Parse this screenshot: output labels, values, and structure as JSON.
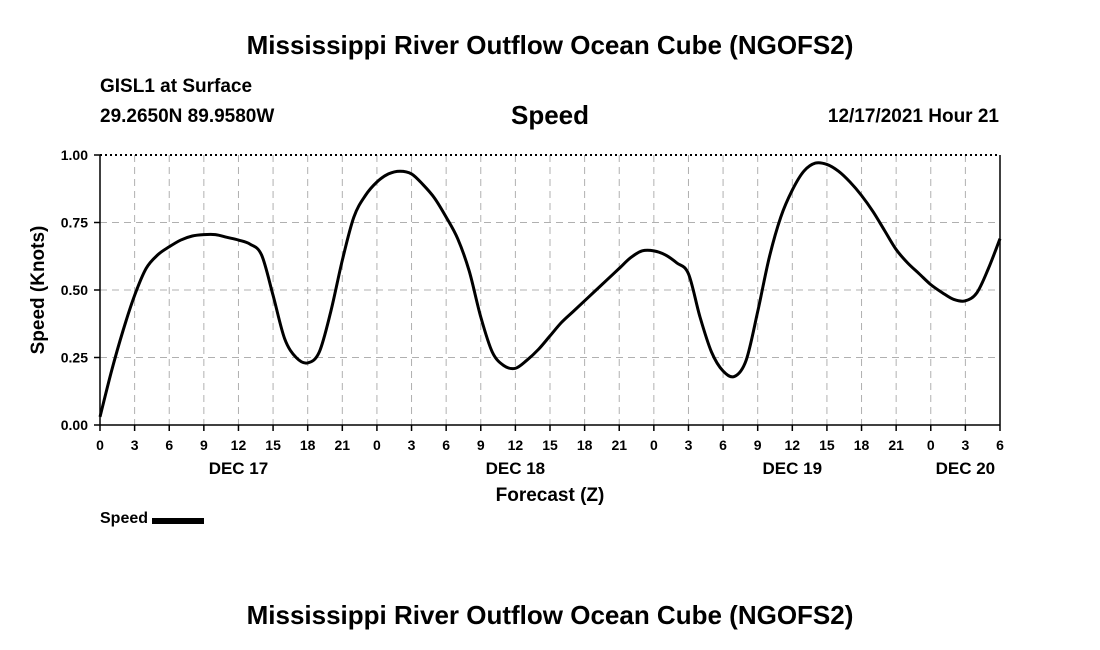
{
  "header": {
    "title": "Mississippi River Outflow Ocean Cube (NGOFS2)",
    "station": "GISL1 at Surface",
    "coords": "29.2650N  89.9580W",
    "subtitle": "Speed",
    "datetime": "12/17/2021 Hour 21"
  },
  "footer": {
    "title": "Mississippi River Outflow Ocean Cube (NGOFS2)"
  },
  "legend": {
    "label": "Speed"
  },
  "chart_data": {
    "type": "line",
    "title": "Speed",
    "xlabel": "Forecast (Z)",
    "ylabel": "Speed (Knots)",
    "xlim": [
      0,
      78
    ],
    "ylim": [
      0,
      1
    ],
    "grid": true,
    "y_ticks": [
      {
        "value": 0,
        "label": "0.00"
      },
      {
        "value": 0.25,
        "label": "0.25"
      },
      {
        "value": 0.5,
        "label": "0.50"
      },
      {
        "value": 0.75,
        "label": "0.75"
      },
      {
        "value": 1,
        "label": "1.00"
      }
    ],
    "x_ticks": [
      {
        "value": 0,
        "label": "0"
      },
      {
        "value": 3,
        "label": "3"
      },
      {
        "value": 6,
        "label": "6"
      },
      {
        "value": 9,
        "label": "9"
      },
      {
        "value": 12,
        "label": "12"
      },
      {
        "value": 15,
        "label": "15"
      },
      {
        "value": 18,
        "label": "18"
      },
      {
        "value": 21,
        "label": "21"
      },
      {
        "value": 24,
        "label": "0"
      },
      {
        "value": 27,
        "label": "3"
      },
      {
        "value": 30,
        "label": "6"
      },
      {
        "value": 33,
        "label": "9"
      },
      {
        "value": 36,
        "label": "12"
      },
      {
        "value": 39,
        "label": "15"
      },
      {
        "value": 42,
        "label": "18"
      },
      {
        "value": 45,
        "label": "21"
      },
      {
        "value": 48,
        "label": "0"
      },
      {
        "value": 51,
        "label": "3"
      },
      {
        "value": 54,
        "label": "6"
      },
      {
        "value": 57,
        "label": "9"
      },
      {
        "value": 60,
        "label": "12"
      },
      {
        "value": 63,
        "label": "15"
      },
      {
        "value": 66,
        "label": "18"
      },
      {
        "value": 69,
        "label": "21"
      },
      {
        "value": 72,
        "label": "0"
      },
      {
        "value": 75,
        "label": "3"
      },
      {
        "value": 78,
        "label": "6"
      }
    ],
    "day_labels": [
      {
        "value": 12,
        "label": "DEC 17"
      },
      {
        "value": 36,
        "label": "DEC 18"
      },
      {
        "value": 60,
        "label": "DEC 19"
      },
      {
        "value": 75,
        "label": "DEC 20"
      }
    ],
    "series": [
      {
        "name": "Speed",
        "x": [
          0,
          1,
          2,
          3,
          4,
          5,
          6,
          7,
          8,
          9,
          10,
          11,
          12,
          13,
          14,
          15,
          16,
          17,
          18,
          19,
          20,
          21,
          22,
          23,
          24,
          25,
          26,
          27,
          28,
          29,
          30,
          31,
          32,
          33,
          34,
          35,
          36,
          37,
          38,
          39,
          40,
          41,
          42,
          43,
          44,
          45,
          46,
          47,
          48,
          49,
          50,
          51,
          52,
          53,
          54,
          55,
          56,
          57,
          58,
          59,
          60,
          61,
          62,
          63,
          64,
          65,
          66,
          67,
          68,
          69,
          70,
          71,
          72,
          73,
          74,
          75,
          76,
          77,
          78
        ],
        "values": [
          0.03,
          0.2,
          0.35,
          0.48,
          0.58,
          0.63,
          0.66,
          0.685,
          0.7,
          0.705,
          0.705,
          0.695,
          0.685,
          0.67,
          0.63,
          0.48,
          0.32,
          0.25,
          0.23,
          0.27,
          0.42,
          0.61,
          0.77,
          0.85,
          0.9,
          0.93,
          0.94,
          0.93,
          0.89,
          0.84,
          0.77,
          0.69,
          0.57,
          0.4,
          0.27,
          0.22,
          0.21,
          0.24,
          0.28,
          0.33,
          0.38,
          0.42,
          0.46,
          0.5,
          0.54,
          0.58,
          0.62,
          0.645,
          0.645,
          0.63,
          0.6,
          0.56,
          0.4,
          0.27,
          0.2,
          0.18,
          0.24,
          0.42,
          0.62,
          0.77,
          0.87,
          0.94,
          0.97,
          0.965,
          0.94,
          0.9,
          0.85,
          0.79,
          0.72,
          0.65,
          0.6,
          0.56,
          0.52,
          0.49,
          0.465,
          0.46,
          0.49,
          0.58,
          0.69
        ]
      }
    ]
  }
}
